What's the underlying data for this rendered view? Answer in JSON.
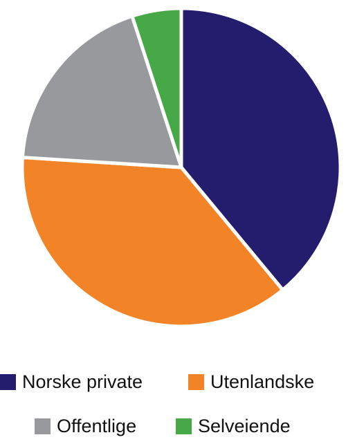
{
  "chart_data": {
    "type": "pie",
    "title": "",
    "slices": [
      {
        "label": "Norske private",
        "value": 39,
        "color": "#241c6d"
      },
      {
        "label": "Utenlandske",
        "value": 37,
        "color": "#f28427"
      },
      {
        "label": "Offentlige",
        "value": 19,
        "color": "#97999c"
      },
      {
        "label": "Selveiende",
        "value": 5,
        "color": "#47a847"
      }
    ],
    "start_angle_deg": 0,
    "direction": "clockwise",
    "slice_separator_color": "#ffffff",
    "legend_position": "bottom"
  }
}
